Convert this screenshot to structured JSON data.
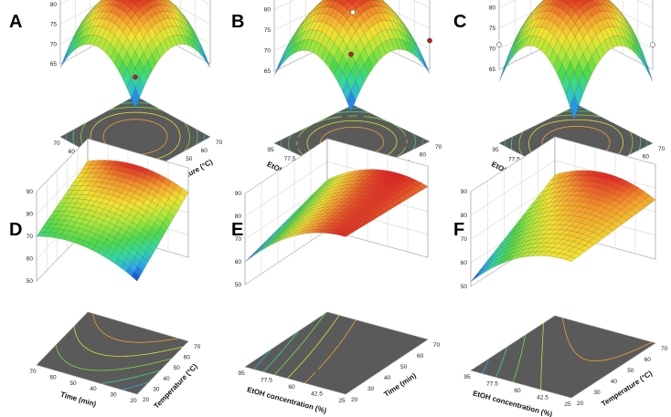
{
  "figure": {
    "background": "#ffffff",
    "floor_color": "#5a5a5a",
    "frame_color": "#9a9a9a",
    "palette": [
      "#1a2fd6",
      "#2aa8e8",
      "#33d9a0",
      "#4fd94a",
      "#a8e83a",
      "#f2e230",
      "#f59a2a",
      "#e02020"
    ]
  },
  "chart_data": [
    {
      "panel": "A",
      "type": "surface3d",
      "xlabel": "Time (min)",
      "ylabel": "Temperature (°C)",
      "zlabel": "",
      "x_ticks": [
        "70",
        "60",
        "50",
        "40",
        "30",
        "20"
      ],
      "y_ticks": [
        "20",
        "30",
        "40",
        "50",
        "60",
        "70"
      ],
      "z_ticks": [
        "65",
        "70",
        "75",
        "80",
        "85"
      ],
      "xlim": [
        20,
        70
      ],
      "ylim": [
        20,
        70
      ],
      "zlim": [
        65,
        85
      ],
      "surface": {
        "center": 83,
        "edge": 74.5,
        "corner": 64
      },
      "points": [
        {
          "x": 45,
          "y": 45,
          "z": 84,
          "fill": "#c02020"
        },
        {
          "x": 20,
          "y": 70,
          "z": 72,
          "fill": "#ffffff"
        },
        {
          "x": 70,
          "y": 20,
          "z": 72,
          "fill": "#c02020"
        }
      ]
    },
    {
      "panel": "B",
      "type": "surface3d",
      "xlabel": "EtOH concentration (%)",
      "ylabel": "Time (min)",
      "zlabel": "",
      "x_ticks": [
        "95",
        "77.5",
        "60",
        "42.5",
        "25"
      ],
      "y_ticks": [
        "20",
        "30",
        "40",
        "50",
        "60",
        "70"
      ],
      "z_ticks": [
        "65",
        "70",
        "75",
        "80",
        "85"
      ],
      "xlim": [
        25,
        95
      ],
      "ylim": [
        20,
        70
      ],
      "zlim": [
        65,
        85
      ],
      "surface": {
        "center": 84,
        "edge": 74,
        "corner": 64
      },
      "points": [
        {
          "x": 60,
          "y": 45,
          "z": 85,
          "fill": "#c02020"
        },
        {
          "x": 95,
          "y": 20,
          "z": 78,
          "fill": "#c02020"
        },
        {
          "x": 95,
          "y": 70,
          "z": 72,
          "fill": "#c02020"
        },
        {
          "x": 25,
          "y": 70,
          "z": 70,
          "fill": "#ffffff"
        }
      ]
    },
    {
      "panel": "C",
      "type": "surface3d",
      "xlabel": "EtOH concentration (%)",
      "ylabel": "Temperature (°C)",
      "zlabel": "",
      "x_ticks": [
        "95",
        "77.5",
        "60",
        "42.5",
        "25"
      ],
      "y_ticks": [
        "20",
        "30",
        "40",
        "50",
        "60",
        "70"
      ],
      "z_ticks": [
        "65",
        "70",
        "75",
        "80",
        "85"
      ],
      "xlim": [
        25,
        95
      ],
      "ylim": [
        20,
        70
      ],
      "zlim": [
        65,
        85
      ],
      "surface": {
        "center": 84,
        "edge": 75,
        "corner": 62
      },
      "points": [
        {
          "x": 60,
          "y": 45,
          "z": 85,
          "fill": "#c02020"
        },
        {
          "x": 95,
          "y": 70,
          "z": 71,
          "fill": "#ffffff"
        },
        {
          "x": 25,
          "y": 20,
          "z": 71,
          "fill": "#ffffff"
        }
      ]
    },
    {
      "panel": "D",
      "type": "surface3d",
      "xlabel": "Time (min)",
      "ylabel": "Temperature (°C)",
      "zlabel": "",
      "x_ticks": [
        "70",
        "60",
        "50",
        "40",
        "30",
        "20"
      ],
      "y_ticks": [
        "20",
        "30",
        "40",
        "50",
        "60",
        "70"
      ],
      "z_ticks": [
        "50",
        "60",
        "70",
        "80",
        "90"
      ],
      "xlim": [
        20,
        70
      ],
      "ylim": [
        20,
        70
      ],
      "zlim": [
        50,
        90
      ],
      "surface": {
        "c00": 63,
        "c10": 70,
        "c01": 79,
        "c11": 80,
        "bow": 5
      },
      "points": []
    },
    {
      "panel": "E",
      "type": "surface3d",
      "xlabel": "EtOH concentration (%)",
      "ylabel": "Time (min)",
      "zlabel": "",
      "x_ticks": [
        "95",
        "77.5",
        "60",
        "42.5",
        "25"
      ],
      "y_ticks": [
        "20",
        "30",
        "40",
        "50",
        "60",
        "70"
      ],
      "z_ticks": [
        "50",
        "60",
        "70",
        "80",
        "90"
      ],
      "xlim": [
        25,
        95
      ],
      "ylim": [
        20,
        70
      ],
      "zlim": [
        50,
        90
      ],
      "surface": {
        "c00": 83,
        "c10": 60,
        "c01": 81,
        "c11": 72,
        "bow": 6
      },
      "points": []
    },
    {
      "panel": "F",
      "type": "surface3d",
      "xlabel": "EtOH concentration (%)",
      "ylabel": "Temperature (°C)",
      "zlabel": "",
      "x_ticks": [
        "95",
        "77.5",
        "60",
        "42.5",
        "25"
      ],
      "y_ticks": [
        "20",
        "30",
        "40",
        "50",
        "60",
        "70"
      ],
      "z_ticks": [
        "50",
        "60",
        "70",
        "80",
        "90"
      ],
      "xlim": [
        25,
        95
      ],
      "ylim": [
        20,
        70
      ],
      "zlim": [
        50,
        90
      ],
      "surface": {
        "c00": 72,
        "c10": 52,
        "c01": 75,
        "c11": 74,
        "bow": 6
      },
      "points": []
    }
  ]
}
